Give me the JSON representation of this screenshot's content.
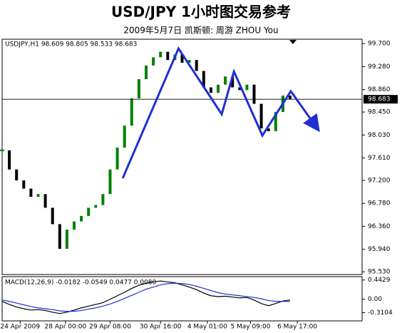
{
  "header": {
    "title": "USD/JPY 1小时图交易参考",
    "subtitle": "2009年5月7日  凯斯顿: 周游 ZHOU You"
  },
  "chart_data": [
    {
      "type": "price",
      "label": "USDJPY,H1  98.609 98.805 98.533 98.683",
      "x": [
        0,
        2,
        4,
        6,
        8,
        10,
        12,
        14,
        16,
        18,
        20,
        22,
        24,
        26,
        28,
        30,
        32,
        34,
        36,
        38,
        40,
        42,
        44,
        46,
        48,
        50,
        52,
        54,
        56,
        58,
        60,
        62,
        64,
        66,
        68,
        70,
        72,
        74,
        76,
        78,
        80
      ],
      "series": [
        {
          "color": "#008000",
          "down_color": "#000000",
          "values": [
            97.75,
            97.4,
            97.2,
            97.05,
            96.9,
            96.95,
            96.7,
            96.4,
            95.95,
            96.3,
            96.45,
            96.55,
            96.7,
            96.75,
            96.95,
            97.4,
            97.8,
            98.2,
            98.7,
            99.05,
            99.3,
            99.45,
            99.55,
            99.4,
            99.5,
            99.35,
            99.4,
            99.2,
            98.9,
            98.8,
            98.95,
            99.1,
            98.9,
            98.85,
            98.95,
            98.6,
            98.15,
            98.1,
            98.45,
            98.75,
            98.683
          ]
        }
      ],
      "last_price": 98.683,
      "wave": {
        "color": "#1f2fd0",
        "x": [
          33.5,
          49,
          61,
          64.4,
          72.3,
          80.2,
          86.9
        ],
        "values": [
          97.24,
          99.61,
          98.41,
          99.19,
          98.02,
          98.83,
          98.21
        ]
      },
      "xlim": [
        0,
        100
      ],
      "ylim": [
        95.48,
        99.78
      ],
      "yticks": [
        {
          "value": 99.7,
          "label": "99.700"
        },
        {
          "value": 99.28,
          "label": "99.280"
        },
        {
          "value": 98.86,
          "label": "98.860"
        },
        {
          "value": 98.45,
          "label": "98.450"
        },
        {
          "value": 98.03,
          "label": "98.030"
        },
        {
          "value": 97.61,
          "label": "97.610"
        },
        {
          "value": 97.2,
          "label": "97.200"
        },
        {
          "value": 96.78,
          "label": "96.780"
        },
        {
          "value": 96.36,
          "label": "96.360"
        },
        {
          "value": 95.94,
          "label": "95.940"
        },
        {
          "value": 95.53,
          "label": "95.530"
        }
      ]
    },
    {
      "type": "line",
      "label": "MACD(12,26,9) -0.0182 -0.0549 0.0477 0.0080",
      "x": [
        0,
        2,
        4,
        6,
        8,
        10,
        12,
        14,
        16,
        18,
        20,
        22,
        24,
        26,
        28,
        30,
        32,
        34,
        36,
        38,
        40,
        42,
        44,
        46,
        48,
        50,
        52,
        54,
        56,
        58,
        60,
        62,
        64,
        66,
        68,
        70,
        72,
        74,
        76,
        78,
        80
      ],
      "series": [
        {
          "color": "#000000",
          "values": [
            -0.05,
            -0.12,
            -0.18,
            -0.22,
            -0.25,
            -0.24,
            -0.26,
            -0.3,
            -0.33,
            -0.3,
            -0.25,
            -0.2,
            -0.16,
            -0.12,
            -0.08,
            0.0,
            0.08,
            0.16,
            0.25,
            0.32,
            0.37,
            0.4,
            0.42,
            0.4,
            0.38,
            0.33,
            0.28,
            0.22,
            0.14,
            0.08,
            0.06,
            0.07,
            0.05,
            0.03,
            0.04,
            -0.02,
            -0.1,
            -0.15,
            -0.1,
            -0.04,
            -0.0182
          ]
        },
        {
          "color": "#1f2fd0",
          "values": [
            -0.02,
            -0.05,
            -0.09,
            -0.13,
            -0.17,
            -0.2,
            -0.22,
            -0.24,
            -0.27,
            -0.28,
            -0.28,
            -0.26,
            -0.23,
            -0.2,
            -0.16,
            -0.11,
            -0.05,
            0.02,
            0.09,
            0.16,
            0.23,
            0.28,
            0.33,
            0.36,
            0.37,
            0.36,
            0.34,
            0.3,
            0.25,
            0.2,
            0.15,
            0.12,
            0.1,
            0.08,
            0.06,
            0.04,
            0.01,
            -0.03,
            -0.05,
            -0.05,
            -0.0549
          ]
        }
      ],
      "xlim": [
        0,
        100
      ],
      "ylim": [
        -0.5,
        0.52
      ],
      "yticks": [
        0.4429,
        {
          "value": 0,
          "label": "0.00"
        },
        -0.3104
      ],
      "xticks": [
        {
          "value": 5,
          "label": "24 Apr 2009"
        },
        {
          "value": 17.6,
          "label": "28 Apr 00:00"
        },
        {
          "value": 30,
          "label": "29 Apr 08:00"
        },
        {
          "value": 44,
          "label": "30 Apr 16:00"
        },
        {
          "value": 57,
          "label": "4 May 01:00"
        },
        {
          "value": 69,
          "label": "5 May 09:00"
        },
        {
          "value": 82,
          "label": "6 May 17:00"
        }
      ]
    }
  ]
}
